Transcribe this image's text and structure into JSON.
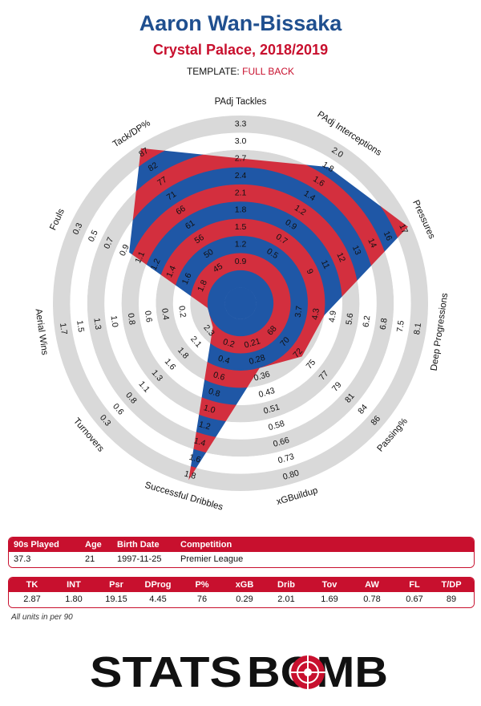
{
  "header": {
    "title": "Aaron Wan-Bissaka",
    "subtitle": "Crystal Palace, 2018/2019",
    "template_label": "TEMPLATE:",
    "template_value": "FULL BACK"
  },
  "colors": {
    "blue": "#1f57a6",
    "red": "#d32f3e",
    "ring_gray": "#d9d9d9",
    "title_blue": "#1f4f8f",
    "accent_red": "#c8102e"
  },
  "chart_data": {
    "type": "radar",
    "rings": 10,
    "axes": [
      {
        "label": "PAdj Tackles",
        "ticks": [
          "0.9",
          "1.2",
          "1.5",
          "1.8",
          "2.1",
          "2.4",
          "2.7",
          "3.0",
          "3.3"
        ],
        "value_fraction": 0.75
      },
      {
        "label": "PAdj Interceptions",
        "ticks": [
          "0.5",
          "0.7",
          "0.9",
          "1.2",
          "1.4",
          "1.6",
          "1.8",
          "2.0"
        ],
        "value_fraction": 0.85
      },
      {
        "label": "Pressures",
        "ticks": [
          "9",
          "11",
          "12",
          "13",
          "14",
          "16",
          "17"
        ],
        "value_fraction": 0.98
      },
      {
        "label": "Deep Progressions",
        "ticks": [
          "3.7",
          "4.3",
          "4.9",
          "5.6",
          "6.2",
          "6.8",
          "7.5",
          "8.1"
        ],
        "value_fraction": 0.4
      },
      {
        "label": "Passing%",
        "ticks": [
          "68",
          "70",
          "72",
          "75",
          "77",
          "79",
          "81",
          "84",
          "86"
        ],
        "value_fraction": 0.38
      },
      {
        "label": "xGBuildup",
        "ticks": [
          "0.21",
          "0.28",
          "0.36",
          "0.43",
          "0.51",
          "0.58",
          "0.66",
          "0.73",
          "0.80"
        ],
        "value_fraction": 0.3
      },
      {
        "label": "Successful Dribbles",
        "ticks": [
          "0.2",
          "0.4",
          "0.6",
          "0.8",
          "1.0",
          "1.2",
          "1.4",
          "1.6",
          "1.8"
        ],
        "value_fraction": 0.98
      },
      {
        "label": "Turnovers",
        "ticks": [
          "2.3",
          "2.1",
          "1.8",
          "1.6",
          "1.3",
          "1.1",
          "0.8",
          "0.6",
          "0.3"
        ],
        "value_fraction": 0.12
      },
      {
        "label": "Aerial Wins",
        "ticks": [
          "0.2",
          "0.4",
          "0.6",
          "0.8",
          "1.0",
          "1.3",
          "1.5",
          "1.7"
        ],
        "value_fraction": 0.1
      },
      {
        "label": "Fouls",
        "ticks": [
          "1.8",
          "1.6",
          "1.4",
          "1.2",
          "1.1",
          "0.9",
          "0.7",
          "0.5",
          "0.3"
        ],
        "value_fraction": 0.62
      },
      {
        "label": "Tack/DP%",
        "ticks": [
          "45",
          "50",
          "56",
          "61",
          "66",
          "71",
          "77",
          "82",
          "87"
        ],
        "value_fraction": 0.98
      }
    ]
  },
  "info_table": {
    "headers": [
      "90s Played",
      "Age",
      "Birth Date",
      "Competition"
    ],
    "values": [
      "37.3",
      "21",
      "1997-11-25",
      "Premier League"
    ]
  },
  "stats_table": {
    "headers": [
      "TK",
      "INT",
      "Psr",
      "DProg",
      "P%",
      "xGB",
      "Drib",
      "Tov",
      "AW",
      "FL",
      "T/DP"
    ],
    "values": [
      "2.87",
      "1.80",
      "19.15",
      "4.45",
      "76",
      "0.29",
      "2.01",
      "1.69",
      "0.78",
      "0.67",
      "89"
    ]
  },
  "footnote": "All units in per 90",
  "logo": {
    "left": "STATS",
    "right": "BOMB"
  }
}
